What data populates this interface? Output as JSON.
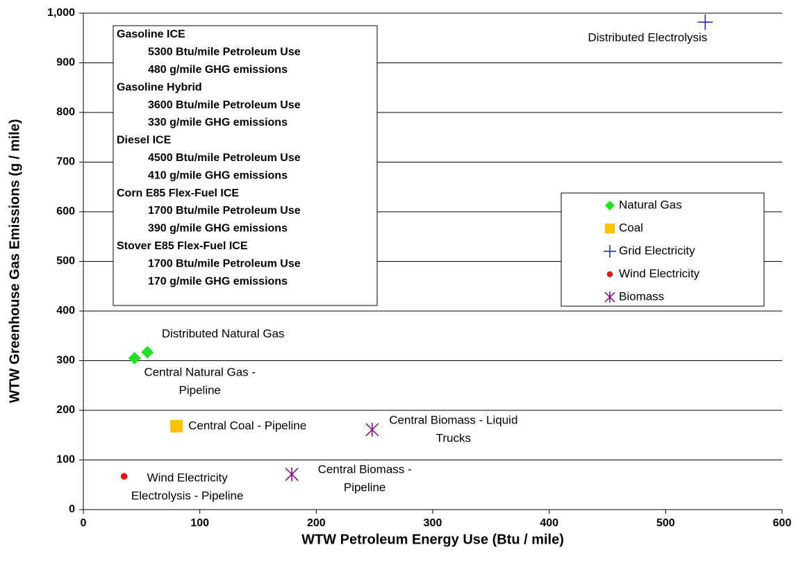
{
  "chart_data": {
    "type": "scatter",
    "x_label": "WTW Petroleum Energy Use (Btu / mile)",
    "y_label": "WTW Greenhouse Gas Emissions (g / mile)",
    "xlim": [
      0,
      600
    ],
    "xticks": [
      0,
      100,
      200,
      300,
      400,
      500,
      600
    ],
    "ylim": [
      0,
      1000
    ],
    "yticks": [
      0,
      100,
      200,
      300,
      400,
      500,
      600,
      700,
      800,
      900,
      {
        "value": 1000,
        "label": "1,000"
      }
    ],
    "grid": true,
    "series": [
      {
        "name": "Natural Gas",
        "color": "#22e022",
        "marker": "diamond",
        "x": [
          44,
          55
        ],
        "values": [
          305,
          317
        ],
        "labels": [
          [
            "Central Natural Gas -",
            "Pipeline"
          ],
          [
            "Distributed Natural Gas"
          ]
        ]
      },
      {
        "name": "Coal",
        "color": "#ffc000",
        "marker": "square",
        "x": [
          80
        ],
        "values": [
          168
        ],
        "labels": [
          [
            "Central Coal - Pipeline"
          ]
        ]
      },
      {
        "name": "Grid Electricity",
        "color": "#1a1acc",
        "marker": "plus",
        "x": [
          534
        ],
        "values": [
          982
        ],
        "labels": [
          [
            "Distributed Electrolysis"
          ]
        ]
      },
      {
        "name": "Wind Electricity",
        "color": "#ee1111",
        "marker": "circle",
        "x": [
          35
        ],
        "values": [
          67
        ],
        "labels": [
          [
            "Wind Electricity",
            "Electrolysis - Pipeline"
          ]
        ]
      },
      {
        "name": "Biomass",
        "color": "#800080",
        "marker": "asterisk",
        "x": [
          248,
          179
        ],
        "values": [
          161,
          71
        ],
        "labels": [
          [
            "Central Biomass - Liquid",
            "Trucks"
          ],
          [
            "Central Biomass -",
            "Pipeline"
          ]
        ]
      }
    ],
    "text_box": [
      {
        "name": "Gasoline ICE",
        "lines": [
          "5300 Btu/mile Petroleum Use",
          "480 g/mile GHG emissions"
        ]
      },
      {
        "name": "Gasoline Hybrid",
        "lines": [
          "3600 Btu/mile Petroleum Use",
          "330 g/mile GHG emissions"
        ]
      },
      {
        "name": "Diesel ICE",
        "lines": [
          "4500 Btu/mile Petroleum Use",
          "410 g/mile GHG emissions"
        ]
      },
      {
        "name": "Corn E85 Flex-Fuel ICE",
        "lines": [
          "1700 Btu/mile Petroleum Use",
          "390 g/mile GHG emissions"
        ]
      },
      {
        "name": "Stover E85 Flex-Fuel ICE",
        "lines": [
          "1700 Btu/mile Petroleum Use",
          "170 g/mile GHG emissions"
        ]
      }
    ]
  }
}
